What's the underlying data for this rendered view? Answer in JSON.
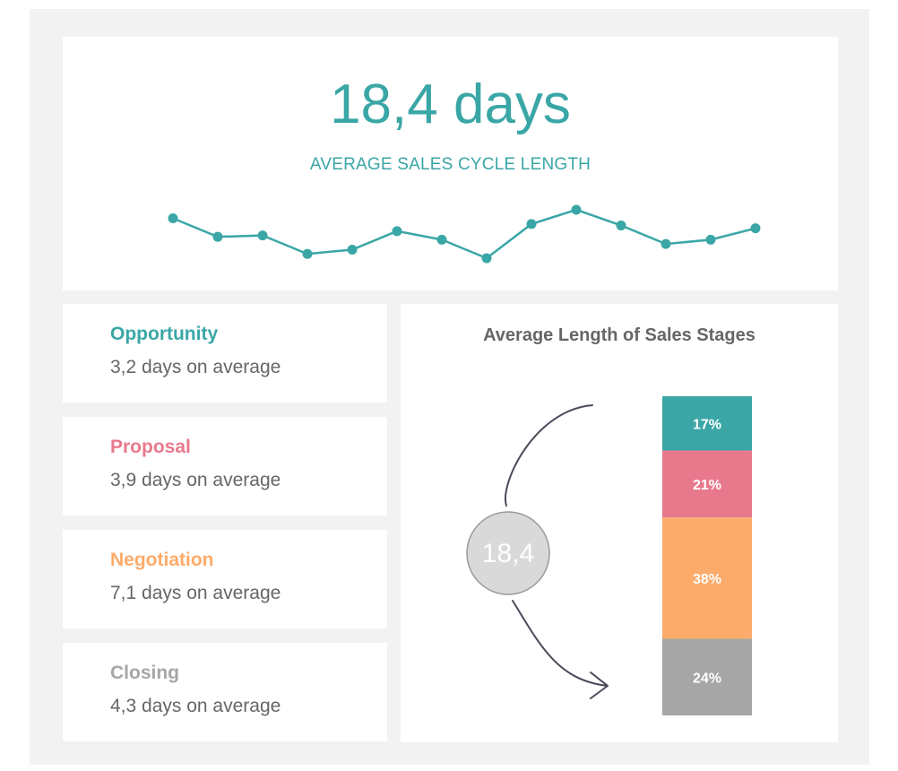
{
  "kpi": {
    "value": "18,4 days",
    "label": "AVERAGE SALES CYCLE LENGTH"
  },
  "stages": [
    {
      "name": "Opportunity",
      "value_text": "3,2 days on average",
      "color": "#3aa6a6"
    },
    {
      "name": "Proposal",
      "value_text": "3,9 days on average",
      "color": "#e8798c"
    },
    {
      "name": "Negotiation",
      "value_text": "7,1 days on average",
      "color": "#fdab6a"
    },
    {
      "name": "Closing",
      "value_text": "4,3 days on average",
      "color": "#a6a6a6"
    }
  ],
  "colors": {
    "accent": "#3aa6a6",
    "background": "#f2f2f2",
    "circle": "#d9d9d9"
  },
  "chart_data": [
    {
      "type": "line",
      "title": "",
      "y": [
        4.6,
        3.3,
        3.4,
        2.1,
        2.4,
        3.7,
        3.1,
        1.8,
        4.2,
        5.2,
        4.1,
        2.8,
        3.1,
        3.9
      ],
      "ylim": [
        0,
        6
      ],
      "color": "#3aa6a6",
      "markers": true,
      "grid": false
    },
    {
      "type": "bar",
      "stacked": true,
      "title": "Average Length of Sales Stages",
      "center_value": "18,4",
      "categories": [
        "Opportunity",
        "Proposal",
        "Negotiation",
        "Closing"
      ],
      "values": [
        17,
        21,
        38,
        24
      ],
      "labels": [
        "17%",
        "21%",
        "38%",
        "24%"
      ],
      "colors": [
        "#3aa6a6",
        "#e8798c",
        "#fdab6a",
        "#a6a6a6"
      ]
    }
  ]
}
